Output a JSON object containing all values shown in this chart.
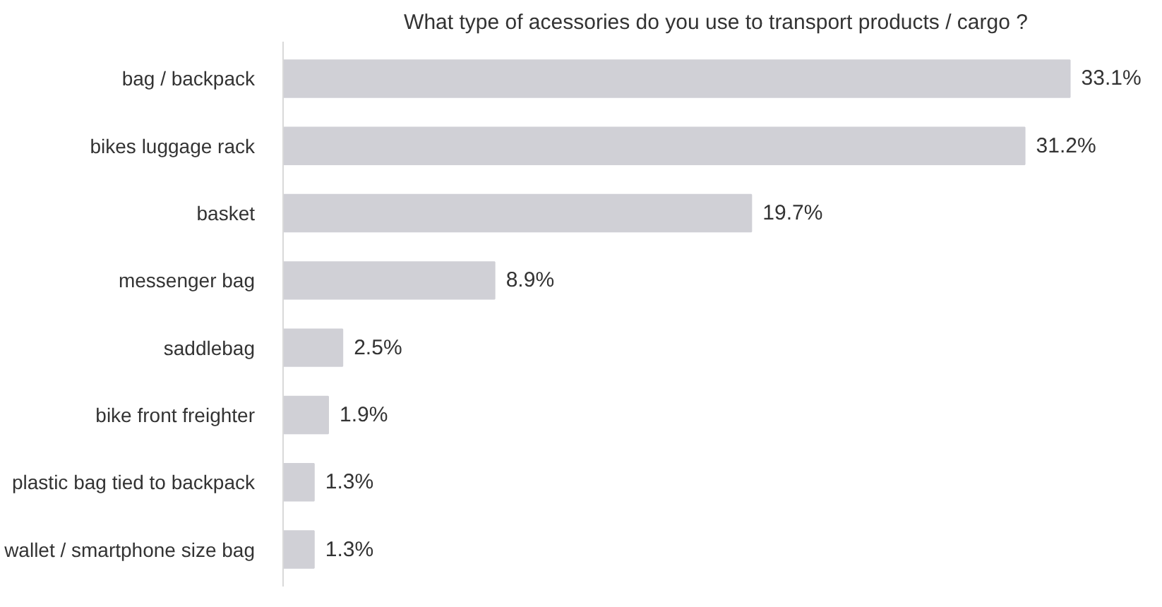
{
  "chart_data": {
    "type": "bar",
    "orientation": "horizontal",
    "title": "What type of acessories do you use to transport products / cargo ?",
    "categories": [
      "bag / backpack",
      "bikes luggage rack",
      "basket",
      "messenger bag",
      "saddlebag",
      "bike front freighter",
      "plastic bag tied to backpack",
      "wallet / smartphone size bag"
    ],
    "values": [
      33.1,
      31.2,
      19.7,
      8.9,
      2.5,
      1.9,
      1.3,
      1.3
    ],
    "value_labels": [
      "33.1%",
      "31.2%",
      "19.7%",
      "8.9%",
      "2.5%",
      "1.9%",
      "1.3%",
      "1.3%"
    ],
    "color": "#d0d0d6"
  }
}
